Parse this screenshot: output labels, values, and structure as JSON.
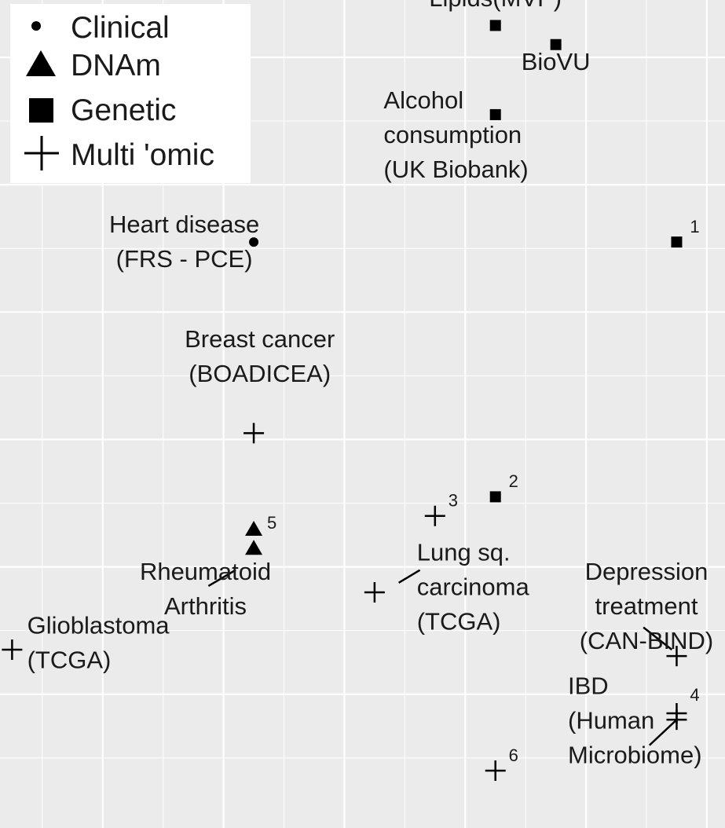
{
  "chart_data": {
    "type": "scatter",
    "colors": {
      "panel": "#ebebeb",
      "grid": "#ffffff",
      "ink": "#000000",
      "legend_bg": "#ffffff"
    },
    "grid": true,
    "legend": {
      "placement": "top-left",
      "entries": [
        {
          "name": "Clinical",
          "shape": "circle"
        },
        {
          "name": "DNAm",
          "shape": "triangle"
        },
        {
          "name": "Genetic",
          "shape": "square"
        },
        {
          "name": "Multi 'omic",
          "shape": "plus"
        }
      ]
    },
    "xlim": [
      -0.2,
      11.8
    ],
    "ylim": [
      -0.6,
      12.4
    ],
    "x_gridlines": [
      1.5,
      3.5,
      5.5,
      7.5,
      9.5,
      11.5
    ],
    "x_minor_gridlines": [
      0.5,
      2.5,
      4.5,
      6.5,
      8.5,
      10.5
    ],
    "y_gridlines": [
      1.5,
      3.5,
      5.5,
      7.5,
      9.5,
      11.5
    ],
    "y_minor_gridlines": [
      0.5,
      2.5,
      4.5,
      6.5,
      8.5,
      10.5
    ],
    "points": [
      {
        "x": 8,
        "y": 12,
        "shape": "square"
      },
      {
        "x": 9,
        "y": 11.7,
        "shape": "square"
      },
      {
        "x": 8,
        "y": 10.6,
        "shape": "square"
      },
      {
        "x": 11,
        "y": 8.6,
        "shape": "square"
      },
      {
        "x": 4,
        "y": 8.6,
        "shape": "circle"
      },
      {
        "x": 4,
        "y": 5.6,
        "shape": "plus"
      },
      {
        "x": 8,
        "y": 4.6,
        "shape": "square"
      },
      {
        "x": 7,
        "y": 4.3,
        "shape": "plus"
      },
      {
        "x": 4,
        "y": 4.1,
        "shape": "triangle"
      },
      {
        "x": 4,
        "y": 3.8,
        "shape": "triangle"
      },
      {
        "x": 6,
        "y": 3.1,
        "shape": "plus"
      },
      {
        "x": 0,
        "y": 2.2,
        "shape": "plus"
      },
      {
        "x": 11,
        "y": 2.1,
        "shape": "plus"
      },
      {
        "x": 11,
        "y": 1.2,
        "shape": "plus"
      },
      {
        "x": 11,
        "y": 1.1,
        "shape": "plus"
      },
      {
        "x": 8,
        "y": 0.3,
        "shape": "plus"
      }
    ],
    "annotations": [
      {
        "lines": [
          "Lipids(MVP)"
        ],
        "x": 8,
        "y": 12.3,
        "anchor": "middle"
      },
      {
        "lines": [
          "BioVU"
        ],
        "x": 9,
        "y": 11.3,
        "anchor": "middle"
      },
      {
        "lines": [
          "Alcohol",
          "consumption",
          "(UK Biobank)"
        ],
        "x": 6.15,
        "y": 10.7,
        "anchor": "start"
      },
      {
        "lines": [
          "Heart disease",
          "(FRS - PCE)"
        ],
        "x": 2.85,
        "y": 8.75,
        "anchor": "middle"
      },
      {
        "lines": [
          "Breast cancer",
          "(BOADICEA)"
        ],
        "x": 4.1,
        "y": 6.95,
        "anchor": "middle"
      },
      {
        "lines": [
          "Rheumatoid",
          "Arthritis"
        ],
        "x": 3.2,
        "y": 3.3,
        "anchor": "middle"
      },
      {
        "lines": [
          "Lung sq.",
          "carcinoma",
          "(TCGA)"
        ],
        "x": 6.7,
        "y": 3.6,
        "anchor": "start"
      },
      {
        "lines": [
          "Glioblastoma",
          "(TCGA)"
        ],
        "x": 0.25,
        "y": 2.45,
        "anchor": "start"
      },
      {
        "lines": [
          "Depression",
          "treatment",
          "(CAN-BIND)"
        ],
        "x": 10.5,
        "y": 3.3,
        "anchor": "middle"
      },
      {
        "lines": [
          "IBD",
          "(Human",
          "Microbiome)"
        ],
        "x": 9.2,
        "y": 1.5,
        "anchor": "start"
      }
    ],
    "footnotes": [
      {
        "text": "1",
        "x": 11.22,
        "y": 8.75
      },
      {
        "text": "2",
        "x": 8.22,
        "y": 4.75
      },
      {
        "text": "3",
        "x": 7.22,
        "y": 4.45
      },
      {
        "text": "4",
        "x": 11.22,
        "y": 1.4
      },
      {
        "text": "5",
        "x": 4.22,
        "y": 4.1
      },
      {
        "text": "6",
        "x": 8.22,
        "y": 0.45
      }
    ],
    "connectors": [
      {
        "x1": 3.7,
        "y1": 3.45,
        "x2": 3.25,
        "y2": 3.2
      },
      {
        "x1": 6.4,
        "y1": 3.25,
        "x2": 6.75,
        "y2": 3.45
      },
      {
        "x1": 10.45,
        "y1": 2.55,
        "x2": 10.92,
        "y2": 2.2
      },
      {
        "x1": 11,
        "y1": 1.1,
        "x2": 10.55,
        "y2": 0.7
      }
    ]
  }
}
